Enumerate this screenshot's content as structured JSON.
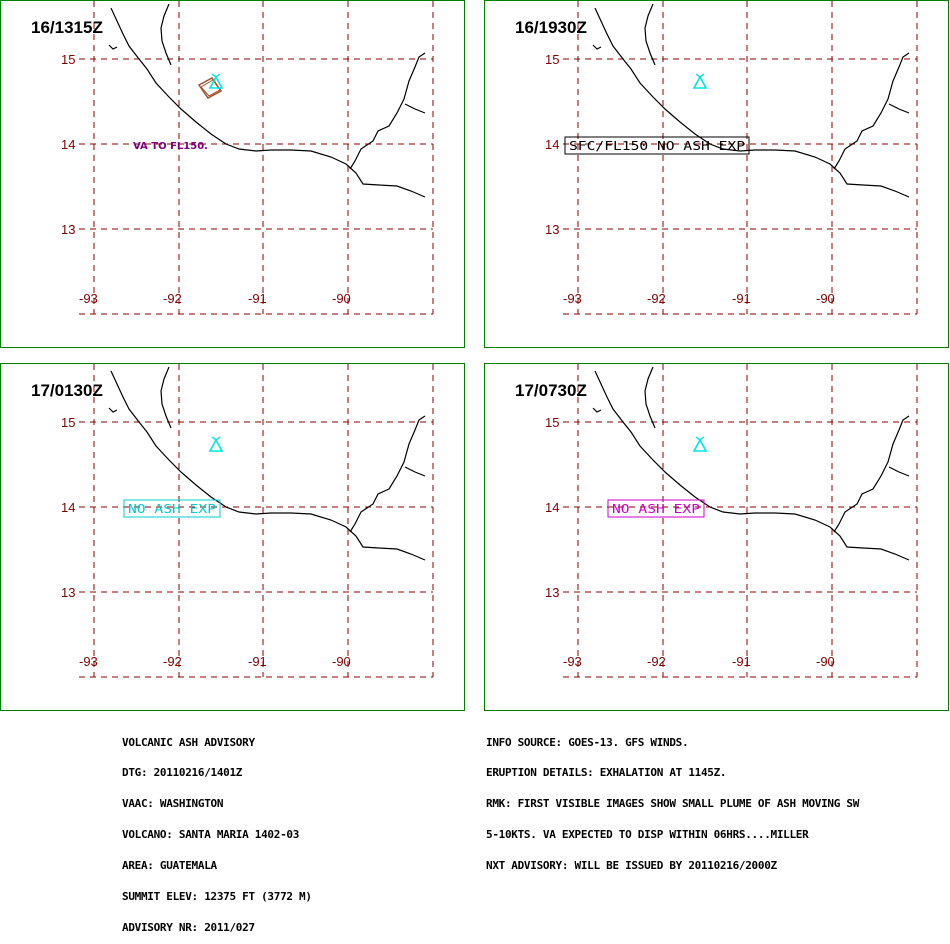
{
  "panels": [
    {
      "time_label": "16/1315Z",
      "annotation": {
        "text": "VA TO FL150.",
        "style": "plain",
        "color": "#800080"
      },
      "ash_polygon": true
    },
    {
      "time_label": "16/1930Z",
      "annotation": {
        "text": "SFC/FL150 NO ASH EXP",
        "style": "boxed",
        "color": "#000000"
      },
      "ash_polygon": false
    },
    {
      "time_label": "17/0130Z",
      "annotation": {
        "text": "NO ASH EXP",
        "style": "boxed",
        "color": "#00cccc"
      },
      "ash_polygon": false
    },
    {
      "time_label": "17/0730Z",
      "annotation": {
        "text": "NO ASH EXP",
        "style": "boxed",
        "color": "#cc00cc"
      },
      "ash_polygon": false
    }
  ],
  "map": {
    "lat_labels": [
      "15",
      "14",
      "13"
    ],
    "lon_labels": [
      "-93",
      "-92",
      "-91",
      "-90"
    ],
    "grid_color": "#8b0000",
    "label_color": "#800000",
    "coast_color": "#000000",
    "volcano_color": "#00e5e5",
    "volcano_icon": "volcano-triangle-icon",
    "ash_polygon_color": "#a0522d"
  },
  "footer_left": [
    "VOLCANIC ASH ADVISORY",
    "DTG: 20110216/1401Z",
    "VAAC: WASHINGTON",
    "VOLCANO: SANTA MARIA 1402-03",
    "AREA: GUATEMALA",
    "SUMMIT ELEV: 12375 FT (3772 M)",
    "ADVISORY NR: 2011/027"
  ],
  "footer_right": [
    "INFO SOURCE: GOES-13. GFS WINDS.",
    "ERUPTION DETAILS: EXHALATION AT 1145Z.",
    "RMK: FIRST VISIBLE IMAGES SHOW SMALL PLUME OF ASH MOVING SW",
    "5-10KTS. VA EXPECTED TO DISP WITHIN 06HRS....MILLER",
    "NXT ADVISORY: WILL BE ISSUED BY 20110216/2000Z"
  ]
}
